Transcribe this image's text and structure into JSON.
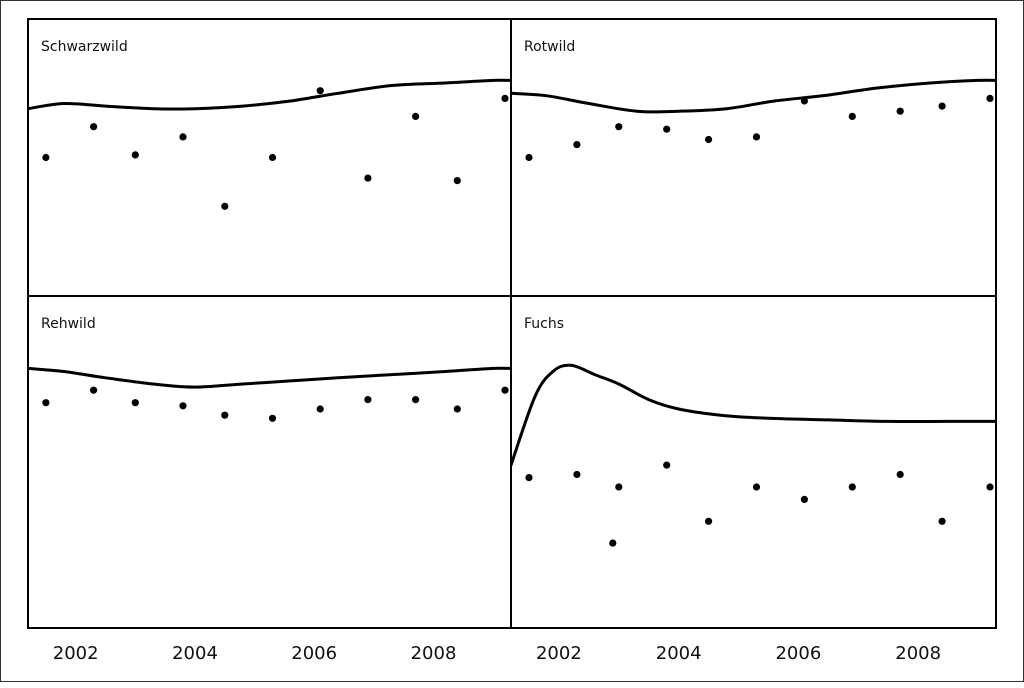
{
  "chart_data": {
    "type": "scatter",
    "layout": "2x2 small multiples",
    "colors": {
      "ink": "#000000",
      "background": "#ffffff"
    },
    "xlim": [
      2001.2,
      2009.3
    ],
    "ylim": [
      0,
      1
    ],
    "x_ticks": [
      "2002",
      "2004",
      "2006",
      "2008"
    ],
    "grid": false,
    "panels": [
      {
        "title": "Schwarzwild",
        "points": [
          {
            "x": 2001.5,
            "y": 0.5
          },
          {
            "x": 2002.3,
            "y": 0.62
          },
          {
            "x": 2003.0,
            "y": 0.51
          },
          {
            "x": 2003.8,
            "y": 0.58
          },
          {
            "x": 2004.5,
            "y": 0.31
          },
          {
            "x": 2005.3,
            "y": 0.5
          },
          {
            "x": 2006.1,
            "y": 0.76
          },
          {
            "x": 2006.9,
            "y": 0.42
          },
          {
            "x": 2007.7,
            "y": 0.66
          },
          {
            "x": 2008.4,
            "y": 0.41
          },
          {
            "x": 2009.2,
            "y": 0.73
          }
        ],
        "curve": [
          [
            2001.2,
            0.69
          ],
          [
            2001.8,
            0.71
          ],
          [
            2002.5,
            0.7
          ],
          [
            2003.3,
            0.69
          ],
          [
            2004.0,
            0.69
          ],
          [
            2004.8,
            0.7
          ],
          [
            2005.6,
            0.72
          ],
          [
            2006.4,
            0.75
          ],
          [
            2007.3,
            0.78
          ],
          [
            2008.2,
            0.79
          ],
          [
            2009.0,
            0.8
          ],
          [
            2009.3,
            0.8
          ]
        ]
      },
      {
        "title": "Rotwild",
        "points": [
          {
            "x": 2001.5,
            "y": 0.5
          },
          {
            "x": 2002.3,
            "y": 0.55
          },
          {
            "x": 2003.0,
            "y": 0.62
          },
          {
            "x": 2003.8,
            "y": 0.61
          },
          {
            "x": 2004.5,
            "y": 0.57
          },
          {
            "x": 2005.3,
            "y": 0.58
          },
          {
            "x": 2006.1,
            "y": 0.72
          },
          {
            "x": 2006.9,
            "y": 0.66
          },
          {
            "x": 2007.7,
            "y": 0.68
          },
          {
            "x": 2008.4,
            "y": 0.7
          },
          {
            "x": 2009.2,
            "y": 0.73
          }
        ],
        "curve": [
          [
            2001.2,
            0.75
          ],
          [
            2001.8,
            0.74
          ],
          [
            2002.5,
            0.71
          ],
          [
            2003.3,
            0.68
          ],
          [
            2004.0,
            0.68
          ],
          [
            2004.8,
            0.69
          ],
          [
            2005.6,
            0.72
          ],
          [
            2006.4,
            0.74
          ],
          [
            2007.3,
            0.77
          ],
          [
            2008.2,
            0.79
          ],
          [
            2009.0,
            0.8
          ],
          [
            2009.3,
            0.8
          ]
        ]
      },
      {
        "title": "Rehwild",
        "points": [
          {
            "x": 2001.5,
            "y": 0.69
          },
          {
            "x": 2002.3,
            "y": 0.73
          },
          {
            "x": 2003.0,
            "y": 0.69
          },
          {
            "x": 2003.8,
            "y": 0.68
          },
          {
            "x": 2004.5,
            "y": 0.65
          },
          {
            "x": 2005.3,
            "y": 0.64
          },
          {
            "x": 2006.1,
            "y": 0.67
          },
          {
            "x": 2006.9,
            "y": 0.7
          },
          {
            "x": 2007.7,
            "y": 0.7
          },
          {
            "x": 2008.4,
            "y": 0.67
          },
          {
            "x": 2009.2,
            "y": 0.73
          }
        ],
        "curve": [
          [
            2001.2,
            0.8
          ],
          [
            2001.8,
            0.79
          ],
          [
            2002.5,
            0.77
          ],
          [
            2003.3,
            0.75
          ],
          [
            2004.0,
            0.74
          ],
          [
            2004.8,
            0.75
          ],
          [
            2005.6,
            0.76
          ],
          [
            2006.4,
            0.77
          ],
          [
            2007.3,
            0.78
          ],
          [
            2008.2,
            0.79
          ],
          [
            2009.0,
            0.8
          ],
          [
            2009.3,
            0.8
          ]
        ]
      },
      {
        "title": "Fuchs",
        "points": [
          {
            "x": 2001.5,
            "y": 0.45
          },
          {
            "x": 2002.3,
            "y": 0.46
          },
          {
            "x": 2003.0,
            "y": 0.42
          },
          {
            "x": 2003.8,
            "y": 0.49
          },
          {
            "x": 2004.5,
            "y": 0.31
          },
          {
            "x": 2005.3,
            "y": 0.42
          },
          {
            "x": 2006.1,
            "y": 0.38
          },
          {
            "x": 2006.9,
            "y": 0.42
          },
          {
            "x": 2007.7,
            "y": 0.46
          },
          {
            "x": 2008.4,
            "y": 0.31
          },
          {
            "x": 2009.2,
            "y": 0.42
          },
          {
            "x": 2002.9,
            "y": 0.24
          }
        ],
        "curve": [
          [
            2001.2,
            0.49
          ],
          [
            2001.6,
            0.71
          ],
          [
            2001.9,
            0.79
          ],
          [
            2002.2,
            0.81
          ],
          [
            2002.6,
            0.78
          ],
          [
            2003.0,
            0.75
          ],
          [
            2003.5,
            0.7
          ],
          [
            2004.0,
            0.67
          ],
          [
            2004.7,
            0.65
          ],
          [
            2005.5,
            0.64
          ],
          [
            2006.5,
            0.635
          ],
          [
            2007.5,
            0.63
          ],
          [
            2008.5,
            0.63
          ],
          [
            2009.3,
            0.63
          ]
        ]
      }
    ]
  }
}
